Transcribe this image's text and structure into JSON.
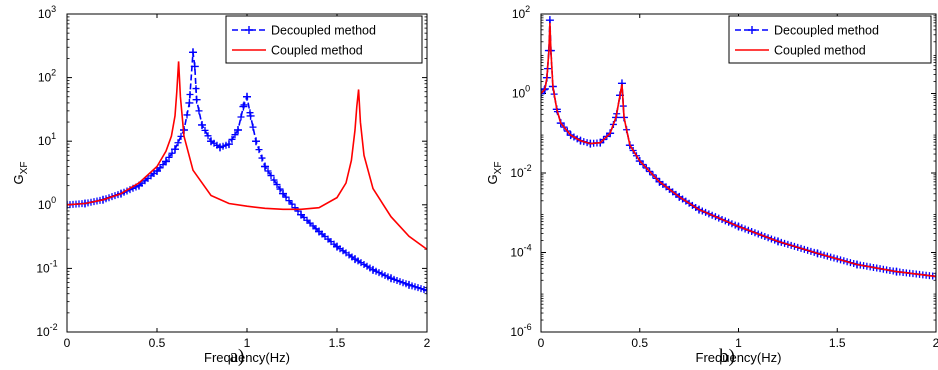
{
  "chart_data": [
    {
      "type": "line",
      "caption": "a)",
      "xlabel": "Frequency(Hz)",
      "ylabel": "G",
      "ylabel_sub": "XF",
      "xlim": [
        0,
        2
      ],
      "ylim_log10": [
        -2,
        3
      ],
      "yscale": "log",
      "x_ticks": [
        0,
        0.5,
        1,
        1.5,
        2
      ],
      "x_tick_labels": [
        "0",
        "0.5",
        "1",
        "1.5",
        "2"
      ],
      "y_ticks_exp": [
        -2,
        -1,
        0,
        1,
        2,
        3
      ],
      "legend_position": "top-right",
      "legend": [
        "Decoupled method",
        "Coupled method"
      ],
      "series": [
        {
          "name": "Decoupled method",
          "color": "#0000ff",
          "style": "dashed-plus",
          "x": [
            0,
            0.1,
            0.2,
            0.3,
            0.4,
            0.5,
            0.55,
            0.6,
            0.65,
            0.68,
            0.7,
            0.71,
            0.72,
            0.75,
            0.8,
            0.85,
            0.9,
            0.95,
            0.98,
            1.0,
            1.02,
            1.05,
            1.1,
            1.2,
            1.3,
            1.4,
            1.5,
            1.6,
            1.7,
            1.8,
            1.9,
            2.0
          ],
          "y": [
            1.0,
            1.05,
            1.2,
            1.5,
            2.0,
            3.4,
            4.8,
            7.5,
            15,
            40,
            250,
            150,
            45,
            18,
            10,
            8,
            9,
            15,
            35,
            50,
            25,
            10,
            4,
            1.5,
            0.7,
            0.38,
            0.22,
            0.14,
            0.095,
            0.07,
            0.055,
            0.045
          ]
        },
        {
          "name": "Coupled method",
          "color": "#ff0000",
          "style": "solid",
          "x": [
            0,
            0.1,
            0.2,
            0.3,
            0.4,
            0.5,
            0.55,
            0.58,
            0.6,
            0.61,
            0.62,
            0.63,
            0.65,
            0.7,
            0.8,
            0.9,
            1.0,
            1.1,
            1.2,
            1.3,
            1.4,
            1.5,
            1.55,
            1.58,
            1.6,
            1.61,
            1.62,
            1.63,
            1.65,
            1.7,
            1.8,
            1.9,
            2.0
          ],
          "y": [
            1.0,
            1.05,
            1.2,
            1.5,
            2.2,
            4.0,
            7.0,
            12,
            25,
            60,
            180,
            50,
            12,
            3.5,
            1.4,
            1.05,
            0.95,
            0.88,
            0.85,
            0.85,
            0.9,
            1.3,
            2.2,
            5,
            15,
            35,
            65,
            20,
            6,
            1.8,
            0.65,
            0.32,
            0.2
          ]
        }
      ]
    },
    {
      "type": "line",
      "caption": "b)",
      "xlabel": "Frequency(Hz)",
      "ylabel": "G",
      "ylabel_sub": "XF",
      "xlim": [
        0,
        2
      ],
      "ylim_log10": [
        -6,
        2
      ],
      "yscale": "log",
      "x_ticks": [
        0,
        0.5,
        1,
        1.5,
        2
      ],
      "x_tick_labels": [
        "0",
        "0.5",
        "1",
        "1.5",
        "2"
      ],
      "y_ticks_exp": [
        -6,
        -4,
        -2,
        0,
        2
      ],
      "legend_position": "top-right",
      "legend": [
        "Decoupled method",
        "Coupled method"
      ],
      "series": [
        {
          "name": "Decoupled method",
          "color": "#0000ff",
          "style": "dashed-plus",
          "x": [
            0,
            0.02,
            0.03,
            0.04,
            0.045,
            0.05,
            0.06,
            0.08,
            0.1,
            0.15,
            0.2,
            0.25,
            0.3,
            0.35,
            0.38,
            0.4,
            0.41,
            0.42,
            0.45,
            0.5,
            0.6,
            0.7,
            0.8,
            1.0,
            1.2,
            1.4,
            1.6,
            1.8,
            2.0
          ],
          "y": [
            1.0,
            1.3,
            2.5,
            12,
            70,
            12,
            1.5,
            0.4,
            0.18,
            0.09,
            0.065,
            0.055,
            0.058,
            0.1,
            0.25,
            0.9,
            1.8,
            0.25,
            0.05,
            0.02,
            0.006,
            0.0025,
            0.0012,
            0.00045,
            0.00019,
            9.5e-05,
            5e-05,
            3.3e-05,
            2.5e-05
          ]
        },
        {
          "name": "Coupled method",
          "color": "#ff0000",
          "style": "solid",
          "x": [
            0,
            0.02,
            0.03,
            0.04,
            0.045,
            0.05,
            0.06,
            0.08,
            0.1,
            0.15,
            0.2,
            0.25,
            0.3,
            0.35,
            0.38,
            0.4,
            0.41,
            0.42,
            0.45,
            0.5,
            0.6,
            0.7,
            0.8,
            1.0,
            1.2,
            1.4,
            1.6,
            1.8,
            2.0
          ],
          "y": [
            1.0,
            1.3,
            2.5,
            12,
            60,
            12,
            1.5,
            0.4,
            0.18,
            0.09,
            0.065,
            0.055,
            0.058,
            0.1,
            0.25,
            0.9,
            1.7,
            0.25,
            0.05,
            0.02,
            0.006,
            0.0025,
            0.0012,
            0.00045,
            0.00019,
            9.5e-05,
            5e-05,
            3.3e-05,
            2.5e-05
          ]
        }
      ]
    }
  ]
}
